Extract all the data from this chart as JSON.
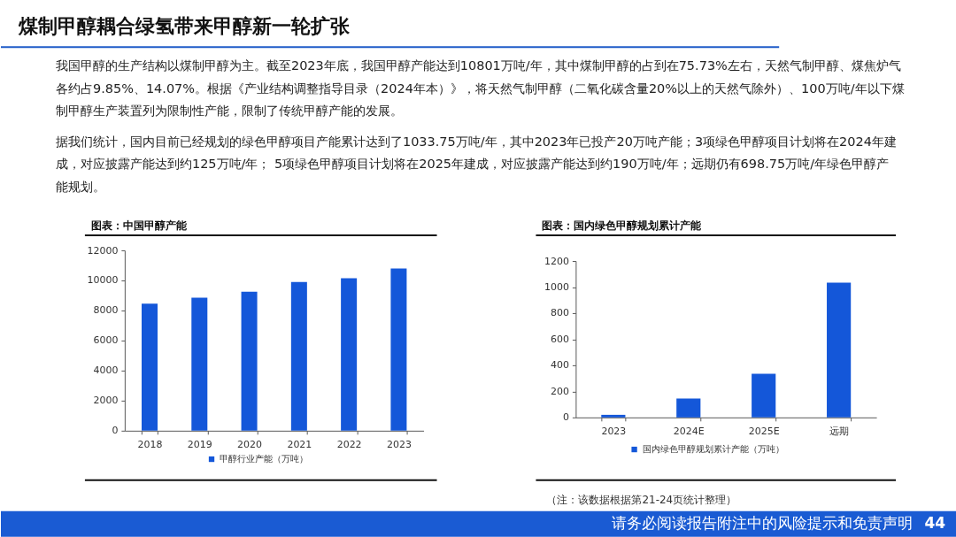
{
  "chart_data": [
    {
      "type": "other",
      "title": "煤制甲醇耦合绿氢带来甲醇新一轮扩张",
      "annotations": [
        "我国甲醇的生产结构以煤制甲醇为主。截至2023年底，我国甲醇产能达到10801万吨/年，其中煤制甲醇的占到在75.73%左右，天然气制甲醇、煤焦炉气各约占9.85%、14.07%。根据《产业结构调整指导目录（2024年本）》，将天然气制甲醇（二氧化碳含量20%以上的天然气除外）、100万吨/年以下煤制甲醇生产装置列为限制性产能，限制了传统甲醇产能的发展。",
        "据我们统计，国内目前已经规划的绿色甲醇项目产能累计达到了1033.75万吨/年，其中2023年已投产20万吨产能；3项绿色甲醇项目计划将在2024年建成，对应披露产能达到约125万吨/年； 5项绿色甲醇项目计划将在2025年建成，对应披露产能达到约190万吨/年；远期仍有698.75万吨/年绿色甲醇产能规划。"
      ]
    },
    {
      "type": "bar",
      "title": "图表：中国甲醇产能",
      "categories": [
        "2018",
        "2019",
        "2020",
        "2021",
        "2022",
        "2023"
      ],
      "series": [
        {
          "name": "甲醇行业产能（万吨）",
          "color": "#1457d9",
          "values": [
            8450,
            8850,
            9250,
            9900,
            10150,
            10800
          ]
        }
      ],
      "ylim": [
        0,
        12000
      ],
      "yticks": [
        0,
        2000,
        4000,
        6000,
        8000,
        10000,
        12000
      ],
      "grid": false,
      "legend": "bottom"
    },
    {
      "type": "bar",
      "title": "图表：国内绿色甲醇规划累计产能",
      "categories": [
        "2023",
        "2024E",
        "2025E",
        "远期"
      ],
      "series": [
        {
          "name": "国内绿色甲醇规划累计产能（万吨）",
          "color": "#1457d9",
          "values": [
            20,
            145,
            335,
            1034
          ]
        }
      ],
      "ylim": [
        0,
        1200
      ],
      "yticks": [
        0,
        200,
        400,
        600,
        800,
        1000,
        1200
      ],
      "grid": false,
      "legend": "bottom",
      "annotations": [
        "（注：该数据根据第21-24页统计整理）"
      ]
    },
    {
      "type": "other",
      "annotations": [
        "请务必阅读报告附注中的风险提示和免责声明",
        "44"
      ]
    }
  ]
}
